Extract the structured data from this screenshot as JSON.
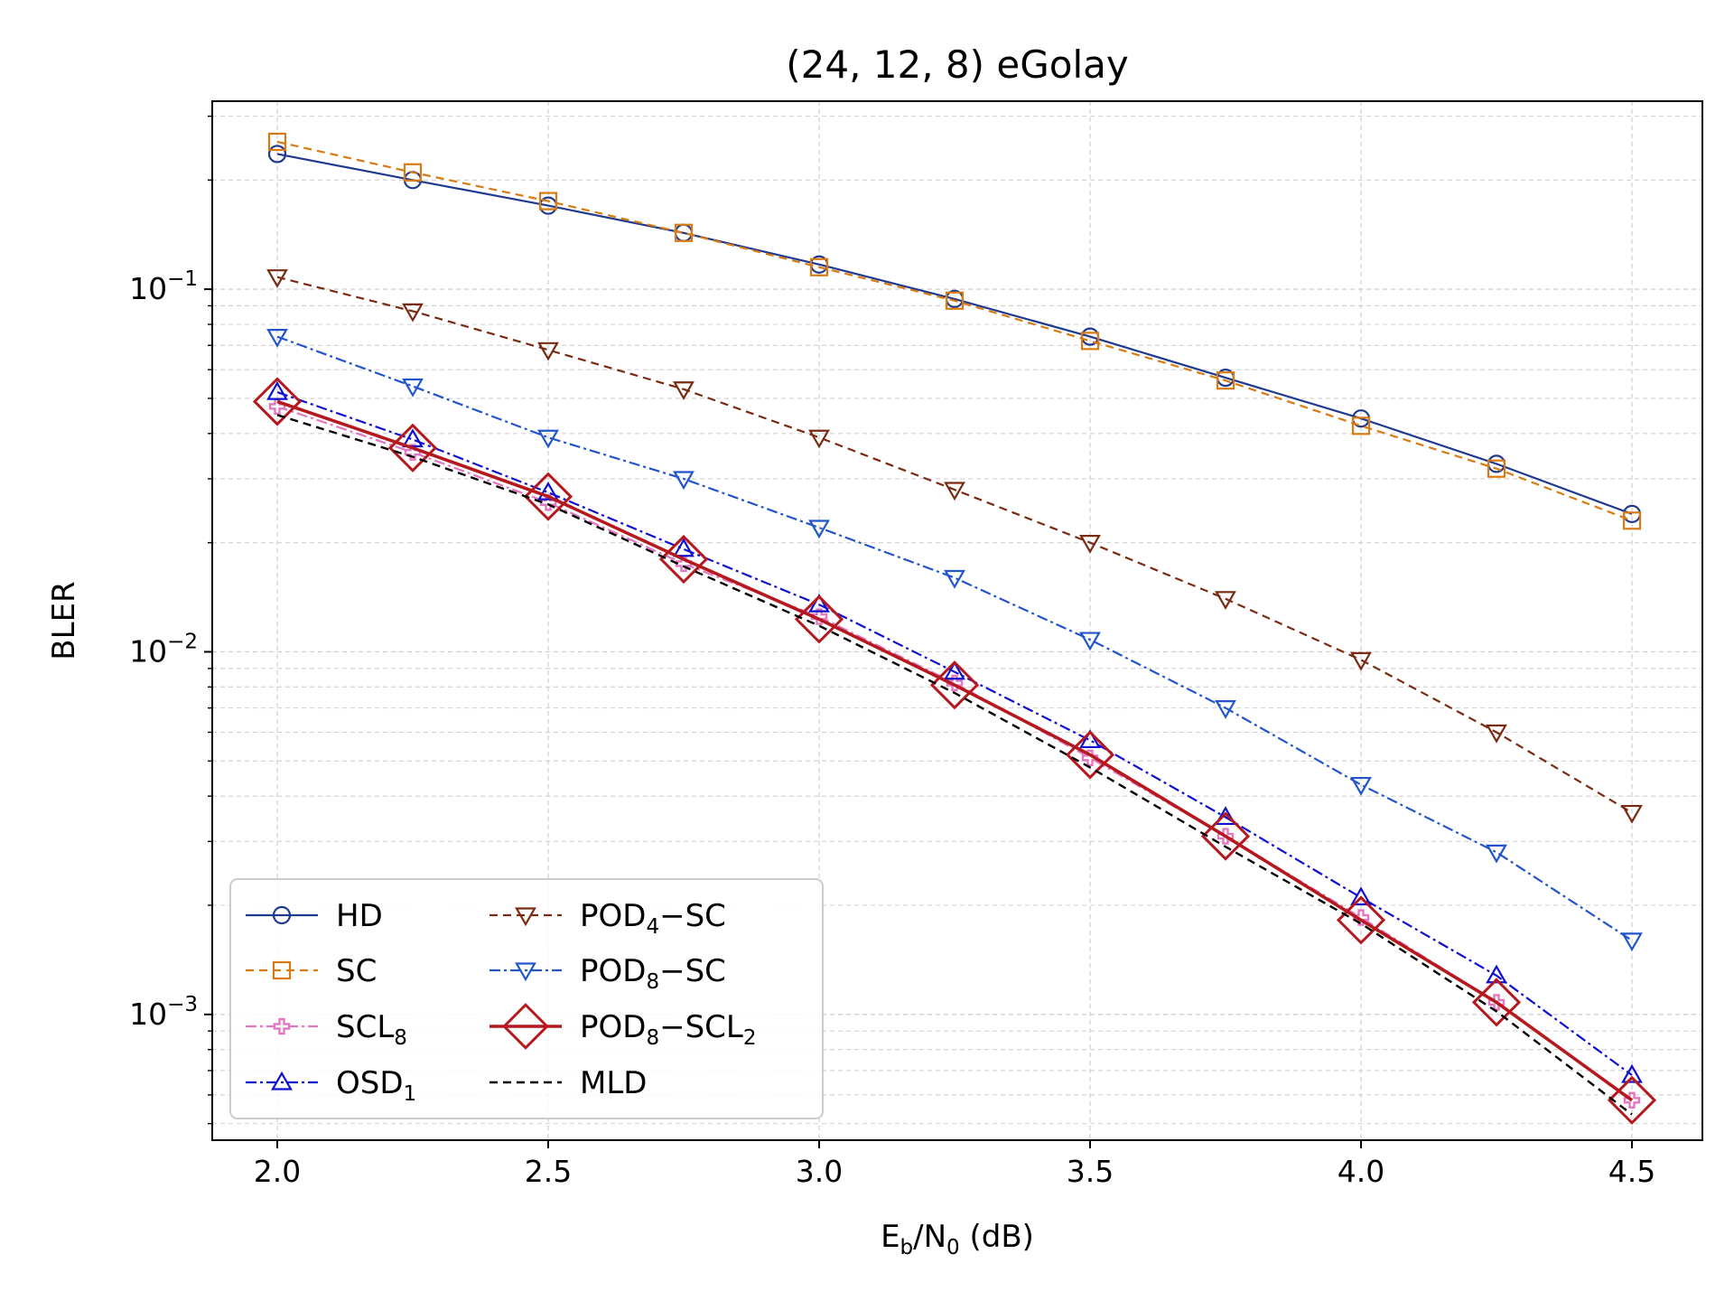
{
  "chart_data": {
    "type": "line",
    "title": "(24, 12, 8) eGolay",
    "xlabel": {
      "base": "E",
      "sub1": "b",
      "mid": "/N",
      "sub2": "0",
      "tail": " (dB)"
    },
    "ylabel": "BLER",
    "yscale": "log",
    "xlim": [
      1.88,
      4.63
    ],
    "ylim": [
      0.00045,
      0.33
    ],
    "x_ticks": [
      2.0,
      2.5,
      3.0,
      3.5,
      4.0,
      4.5
    ],
    "x_tick_labels": [
      "2.0",
      "2.5",
      "3.0",
      "3.5",
      "4.0",
      "4.5"
    ],
    "y_ticks": [
      {
        "value": 0.1,
        "base": "10",
        "exp": "−1"
      },
      {
        "value": 0.01,
        "base": "10",
        "exp": "−2"
      },
      {
        "value": 0.001,
        "base": "10",
        "exp": "−3"
      }
    ],
    "grid": true,
    "legend_position": "lower-left",
    "x": [
      2.0,
      2.25,
      2.5,
      2.75,
      3.0,
      3.25,
      3.5,
      3.75,
      4.0,
      4.25,
      4.5
    ],
    "series": [
      {
        "id": "hd",
        "label": {
          "main": "HD",
          "sub": "",
          "tail": ""
        },
        "color": "#1f3a8f",
        "dash": "",
        "marker": "circle",
        "width": 2.2,
        "values": [
          0.236,
          0.2,
          0.17,
          0.143,
          0.117,
          0.094,
          0.074,
          0.057,
          0.044,
          0.033,
          0.024
        ]
      },
      {
        "id": "sc",
        "label": {
          "main": "SC",
          "sub": "",
          "tail": ""
        },
        "color": "#d97a12",
        "dash": "9,6",
        "marker": "square",
        "width": 2.2,
        "values": [
          0.255,
          0.21,
          0.175,
          0.143,
          0.115,
          0.093,
          0.072,
          0.056,
          0.042,
          0.032,
          0.023
        ]
      },
      {
        "id": "scl8",
        "label": {
          "main": "SCL",
          "sub": "8",
          "tail": ""
        },
        "color": "#e377c2",
        "dash": "12,4,3,4",
        "marker": "plus",
        "width": 2.2,
        "values": [
          0.0475,
          0.0355,
          0.0258,
          0.0175,
          0.0125,
          0.0082,
          0.0051,
          0.0031,
          0.00185,
          0.00108,
          0.00058
        ]
      },
      {
        "id": "osd1",
        "label": {
          "main": "OSD",
          "sub": "1",
          "tail": ""
        },
        "color": "#1010d0",
        "dash": "12,4,3,4",
        "marker": "triangle-up",
        "width": 2.2,
        "values": [
          0.052,
          0.0385,
          0.0275,
          0.0192,
          0.0135,
          0.0088,
          0.0057,
          0.0035,
          0.0021,
          0.00128,
          0.00068
        ]
      },
      {
        "id": "pod4sc",
        "label": {
          "main": "POD",
          "sub": "4",
          "tail": "−SC"
        },
        "color": "#7a2a10",
        "dash": "9,6",
        "marker": "triangle-down",
        "width": 2.2,
        "values": [
          0.108,
          0.087,
          0.068,
          0.053,
          0.039,
          0.028,
          0.02,
          0.014,
          0.0095,
          0.006,
          0.0036
        ]
      },
      {
        "id": "pod8sc",
        "label": {
          "main": "POD",
          "sub": "8",
          "tail": "−SC"
        },
        "color": "#2255cc",
        "dash": "12,4,3,4",
        "marker": "triangle-down",
        "width": 2.2,
        "values": [
          0.074,
          0.054,
          0.039,
          0.03,
          0.022,
          0.016,
          0.0108,
          0.007,
          0.0043,
          0.0028,
          0.0016
        ]
      },
      {
        "id": "pod8scl2",
        "label": {
          "main": "POD",
          "sub": "8",
          "tail": "−SCL",
          "sub2": "2"
        },
        "color": "#b5191e",
        "dash": "",
        "marker": "diamond",
        "width": 3.6,
        "values": [
          0.049,
          0.0365,
          0.0268,
          0.018,
          0.0123,
          0.0081,
          0.0052,
          0.0031,
          0.00182,
          0.00108,
          0.00058
        ]
      },
      {
        "id": "mld",
        "label": {
          "main": "MLD",
          "sub": "",
          "tail": ""
        },
        "color": "#000000",
        "dash": "9,6",
        "marker": "none",
        "width": 2.4,
        "values": [
          0.045,
          0.0345,
          0.0255,
          0.0172,
          0.0118,
          0.0077,
          0.0048,
          0.0029,
          0.00178,
          0.00102,
          0.00053
        ]
      }
    ],
    "legend_columns": [
      [
        "hd",
        "sc",
        "scl8",
        "osd1"
      ],
      [
        "pod4sc",
        "pod8sc",
        "pod8scl2",
        "mld"
      ]
    ]
  }
}
